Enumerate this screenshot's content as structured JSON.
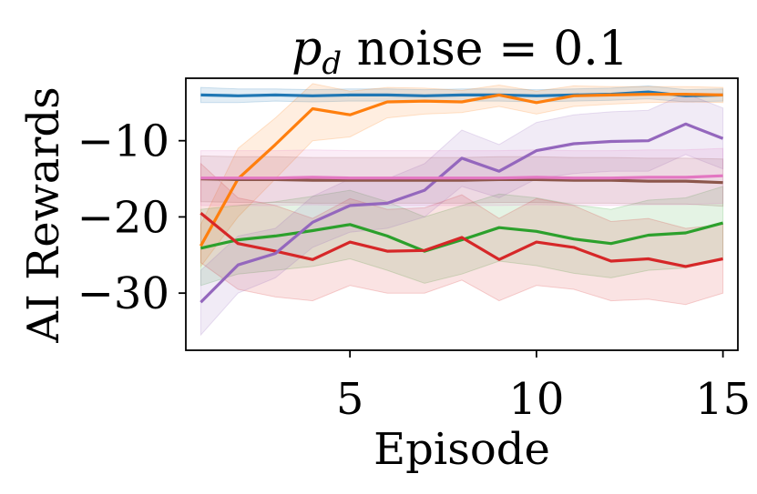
{
  "chart_data": {
    "type": "line",
    "title": "p_d noise = 0.1",
    "title_parts": {
      "symbol": "p",
      "subscript": "d",
      "rest": " noise = 0.1"
    },
    "xlabel": "Episode",
    "ylabel": "AI Rewards",
    "xlim": [
      0.6,
      15.4
    ],
    "ylim": [
      -37.5,
      -1.8
    ],
    "xticks": [
      5,
      10,
      15
    ],
    "xtick_labels": [
      "5",
      "10",
      "15"
    ],
    "yticks": [
      -10,
      -20,
      -30
    ],
    "ytick_labels": [
      "−10",
      "−20",
      "−30"
    ],
    "grid": false,
    "legend": "none",
    "x": [
      1,
      2,
      3,
      4,
      5,
      6,
      7,
      8,
      9,
      10,
      11,
      12,
      13,
      14,
      15
    ],
    "series": [
      {
        "name": "blue",
        "color": "#1f77b4",
        "values": [
          -4.0,
          -4.1,
          -4.0,
          -4.1,
          -4.0,
          -4.0,
          -4.1,
          -4.0,
          -4.0,
          -4.1,
          -4.0,
          -3.9,
          -3.6,
          -4.1,
          -4.0
        ],
        "lower": [
          -5.0,
          -5.0,
          -4.8,
          -4.9,
          -4.8,
          -4.8,
          -4.9,
          -4.8,
          -4.8,
          -4.9,
          -4.8,
          -4.7,
          -4.5,
          -4.9,
          -4.8
        ],
        "upper": [
          -3.0,
          -3.2,
          -3.2,
          -3.3,
          -3.2,
          -3.2,
          -3.3,
          -3.2,
          -3.2,
          -3.3,
          -3.2,
          -3.1,
          -2.8,
          -3.3,
          -3.2
        ]
      },
      {
        "name": "orange",
        "color": "#ff7f0e",
        "values": [
          -23.8,
          -15.0,
          -10.5,
          -5.8,
          -6.6,
          -4.9,
          -4.8,
          -4.9,
          -4.0,
          -5.0,
          -4.1,
          -4.0,
          -3.9,
          -3.9,
          -4.0
        ],
        "lower": [
          -26.5,
          -20.0,
          -15.0,
          -10.0,
          -9.5,
          -7.0,
          -6.5,
          -6.3,
          -5.5,
          -6.5,
          -5.5,
          -5.2,
          -5.0,
          -4.9,
          -5.0
        ],
        "upper": [
          -21.0,
          -11.0,
          -7.0,
          -2.5,
          -3.5,
          -3.0,
          -3.1,
          -3.4,
          -2.7,
          -3.5,
          -2.8,
          -2.9,
          -2.9,
          -2.9,
          -3.0
        ]
      },
      {
        "name": "green",
        "color": "#2ca02c",
        "values": [
          -24.1,
          -23.0,
          -22.5,
          -21.8,
          -21.0,
          -22.5,
          -24.5,
          -23.0,
          -21.4,
          -21.9,
          -22.9,
          -23.5,
          -22.4,
          -22.1,
          -20.8
        ],
        "lower": [
          -29.0,
          -27.5,
          -27.0,
          -26.5,
          -25.5,
          -27.0,
          -28.7,
          -27.5,
          -25.8,
          -26.4,
          -27.4,
          -28.0,
          -27.0,
          -26.7,
          -25.5
        ],
        "upper": [
          -19.0,
          -18.5,
          -18.0,
          -17.3,
          -16.5,
          -18.0,
          -20.0,
          -18.5,
          -17.0,
          -17.5,
          -18.4,
          -19.0,
          -17.8,
          -17.5,
          -16.0
        ]
      },
      {
        "name": "red",
        "color": "#d62728",
        "values": [
          -19.5,
          -23.5,
          -24.5,
          -25.6,
          -23.3,
          -24.5,
          -24.4,
          -22.7,
          -25.6,
          -23.3,
          -24.0,
          -25.8,
          -25.5,
          -26.5,
          -25.5
        ],
        "lower": [
          -26.0,
          -29.5,
          -30.5,
          -31.0,
          -29.0,
          -30.0,
          -30.0,
          -28.3,
          -31.0,
          -29.0,
          -29.5,
          -31.0,
          -30.8,
          -31.5,
          -30.0
        ],
        "upper": [
          -13.0,
          -17.5,
          -18.5,
          -20.2,
          -17.6,
          -19.0,
          -18.8,
          -17.1,
          -20.2,
          -17.6,
          -18.5,
          -20.6,
          -20.2,
          -21.5,
          -21.0
        ]
      },
      {
        "name": "purple",
        "color": "#9467bd",
        "values": [
          -31.2,
          -26.3,
          -24.8,
          -20.7,
          -18.5,
          -18.2,
          -16.5,
          -12.3,
          -14.0,
          -11.3,
          -10.4,
          -10.1,
          -10.0,
          -7.8,
          -9.7
        ],
        "lower": [
          -35.5,
          -30.0,
          -28.0,
          -24.0,
          -22.0,
          -21.5,
          -20.0,
          -16.0,
          -17.5,
          -15.0,
          -14.3,
          -14.0,
          -14.0,
          -11.8,
          -13.7
        ],
        "upper": [
          -27.0,
          -22.5,
          -21.5,
          -17.3,
          -15.0,
          -15.0,
          -13.0,
          -8.6,
          -10.5,
          -7.6,
          -6.6,
          -6.2,
          -6.0,
          -3.8,
          -5.7
        ]
      },
      {
        "name": "brown",
        "color": "#8c564b",
        "values": [
          -15.0,
          -15.1,
          -15.1,
          -15.2,
          -15.2,
          -15.2,
          -15.2,
          -15.2,
          -15.1,
          -15.1,
          -15.2,
          -15.2,
          -15.3,
          -15.3,
          -15.5
        ],
        "lower": [
          -18.0,
          -18.1,
          -18.1,
          -18.2,
          -18.2,
          -18.2,
          -18.2,
          -18.2,
          -18.1,
          -18.1,
          -18.2,
          -18.2,
          -18.3,
          -18.3,
          -18.6
        ],
        "upper": [
          -12.0,
          -12.1,
          -12.1,
          -12.2,
          -12.2,
          -12.2,
          -12.2,
          -12.2,
          -12.1,
          -12.1,
          -12.2,
          -12.2,
          -12.3,
          -12.3,
          -12.4
        ]
      },
      {
        "name": "pink",
        "color": "#e377c2",
        "values": [
          -14.9,
          -14.9,
          -14.9,
          -14.8,
          -14.9,
          -14.9,
          -14.9,
          -14.9,
          -14.9,
          -14.8,
          -14.9,
          -14.9,
          -14.8,
          -14.8,
          -14.6
        ],
        "lower": [
          -18.5,
          -18.5,
          -18.5,
          -18.4,
          -18.5,
          -18.5,
          -18.5,
          -18.5,
          -18.5,
          -18.4,
          -18.5,
          -18.5,
          -18.4,
          -18.4,
          -18.2
        ],
        "upper": [
          -11.3,
          -11.3,
          -11.3,
          -11.2,
          -11.3,
          -11.3,
          -11.3,
          -11.3,
          -11.3,
          -11.2,
          -11.3,
          -11.3,
          -11.2,
          -11.2,
          -11.0
        ]
      }
    ]
  }
}
